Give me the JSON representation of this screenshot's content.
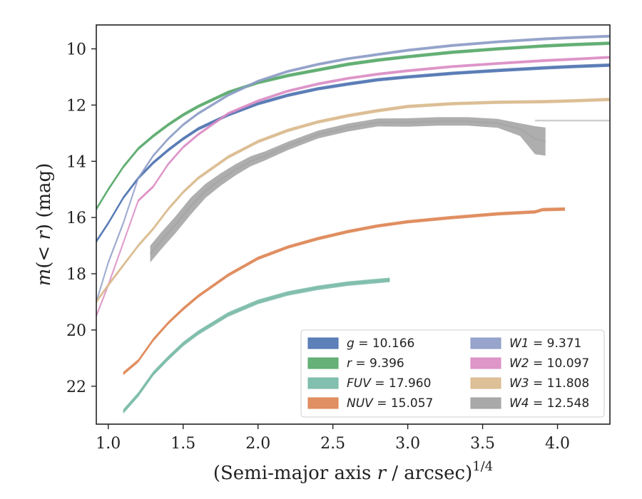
{
  "chart_data": {
    "type": "line",
    "xlabel": "(Semi-major axis r / arcsec)^{1/4}",
    "ylabel": "m(< r) (mag)",
    "xlim": [
      0.92,
      4.35
    ],
    "ylim": [
      23.35,
      9.15
    ],
    "y_inverted": true,
    "grid": false,
    "legend_placement": "lower-right",
    "x_ticks": [
      1.0,
      1.5,
      2.0,
      2.5,
      3.0,
      3.5,
      4.0
    ],
    "x_tick_labels": [
      "1.0",
      "1.5",
      "2.0",
      "2.5",
      "3.0",
      "3.5",
      "4.0"
    ],
    "y_ticks": [
      10,
      12,
      14,
      16,
      18,
      20,
      22
    ],
    "y_tick_labels": [
      "10",
      "12",
      "14",
      "16",
      "18",
      "20",
      "22"
    ],
    "series": [
      {
        "name": "g",
        "legend_label": "g = 10.166",
        "color": "#4c72b0",
        "x": [
          0.92,
          1.0,
          1.1,
          1.2,
          1.3,
          1.4,
          1.5,
          1.6,
          1.8,
          2.0,
          2.2,
          2.4,
          2.6,
          2.8,
          3.0,
          3.3,
          3.6,
          3.9,
          4.1,
          4.35
        ],
        "y": [
          16.85,
          16.2,
          15.3,
          14.6,
          14.05,
          13.6,
          13.2,
          12.85,
          12.35,
          11.95,
          11.65,
          11.42,
          11.25,
          11.1,
          11.0,
          10.87,
          10.77,
          10.68,
          10.63,
          10.58
        ],
        "band": 0.06
      },
      {
        "name": "r",
        "legend_label": "r = 9.396",
        "color": "#55a868",
        "x": [
          0.92,
          1.0,
          1.1,
          1.2,
          1.3,
          1.4,
          1.5,
          1.6,
          1.8,
          2.0,
          2.2,
          2.4,
          2.6,
          2.8,
          3.0,
          3.3,
          3.6,
          3.9,
          4.1,
          4.35
        ],
        "y": [
          15.7,
          15.0,
          14.2,
          13.55,
          13.1,
          12.7,
          12.35,
          12.05,
          11.55,
          11.2,
          10.95,
          10.75,
          10.55,
          10.4,
          10.28,
          10.12,
          10.0,
          9.9,
          9.85,
          9.8
        ],
        "band": 0.06
      },
      {
        "name": "FUV",
        "legend_label": "FUV = 17.960",
        "color": "#76b8a5",
        "x": [
          1.1,
          1.2,
          1.3,
          1.4,
          1.5,
          1.6,
          1.8,
          2.0,
          2.2,
          2.4,
          2.6,
          2.88
        ],
        "y": [
          22.9,
          22.3,
          21.55,
          21.0,
          20.5,
          20.1,
          19.45,
          19.0,
          18.7,
          18.5,
          18.35,
          18.22
        ],
        "band": 0.08
      },
      {
        "name": "NUV",
        "legend_label": "NUV = 15.057",
        "color": "#dd8452",
        "x": [
          1.1,
          1.2,
          1.3,
          1.4,
          1.5,
          1.6,
          1.8,
          2.0,
          2.2,
          2.4,
          2.6,
          2.8,
          3.0,
          3.3,
          3.6,
          3.85,
          3.9,
          4.05
        ],
        "y": [
          21.55,
          21.1,
          20.35,
          19.75,
          19.25,
          18.8,
          18.05,
          17.45,
          17.05,
          16.75,
          16.5,
          16.3,
          16.15,
          16.0,
          15.87,
          15.8,
          15.72,
          15.7
        ],
        "band": 0.06
      },
      {
        "name": "W1",
        "legend_label": "W1 = 9.371",
        "color": "#8c9bc6",
        "x": [
          0.92,
          1.0,
          1.1,
          1.2,
          1.3,
          1.4,
          1.5,
          1.6,
          1.8,
          2.0,
          2.2,
          2.4,
          2.6,
          2.8,
          3.0,
          3.3,
          3.6,
          3.9,
          4.1,
          4.35
        ],
        "y": [
          19.0,
          17.6,
          16.2,
          14.6,
          13.8,
          13.2,
          12.7,
          12.3,
          11.65,
          11.15,
          10.8,
          10.55,
          10.35,
          10.2,
          10.05,
          9.88,
          9.75,
          9.65,
          9.6,
          9.55
        ],
        "band": 0.05
      },
      {
        "name": "W2",
        "legend_label": "W2 = 10.097",
        "color": "#da8bc3",
        "x": [
          0.92,
          1.0,
          1.1,
          1.2,
          1.3,
          1.4,
          1.5,
          1.6,
          1.8,
          2.0,
          2.2,
          2.4,
          2.6,
          2.8,
          3.0,
          3.3,
          3.6,
          3.9,
          4.1,
          4.35
        ],
        "y": [
          19.5,
          18.4,
          16.9,
          15.4,
          14.9,
          14.1,
          13.5,
          13.05,
          12.3,
          11.85,
          11.5,
          11.25,
          11.05,
          10.9,
          10.78,
          10.63,
          10.52,
          10.42,
          10.37,
          10.3
        ],
        "band": 0.05
      },
      {
        "name": "W3",
        "legend_label": "W3 = 11.808",
        "color": "#d9b98c",
        "x": [
          0.92,
          1.0,
          1.1,
          1.2,
          1.3,
          1.4,
          1.5,
          1.6,
          1.8,
          2.0,
          2.2,
          2.4,
          2.6,
          2.8,
          3.0,
          3.3,
          3.6,
          3.9,
          4.1,
          4.35
        ],
        "y": [
          19.0,
          18.4,
          17.7,
          17.0,
          16.4,
          15.7,
          15.1,
          14.6,
          13.85,
          13.3,
          12.9,
          12.6,
          12.38,
          12.2,
          12.05,
          11.95,
          11.9,
          11.88,
          11.85,
          11.8
        ],
        "band": 0.06
      },
      {
        "name": "W4",
        "legend_label": "W4 = 12.548",
        "color": "#a0a0a0",
        "x": [
          1.28,
          1.35,
          1.45,
          1.55,
          1.65,
          1.75,
          1.85,
          1.95,
          2.05,
          2.2,
          2.4,
          2.6,
          2.8,
          3.0,
          3.2,
          3.4,
          3.6,
          3.75,
          3.85,
          3.92
        ],
        "y": [
          17.3,
          16.85,
          16.25,
          15.6,
          15.05,
          14.65,
          14.3,
          14.0,
          13.8,
          13.45,
          13.05,
          12.8,
          12.62,
          12.62,
          12.58,
          12.58,
          12.65,
          12.85,
          13.2,
          13.3
        ],
        "band_upper": [
          0.3,
          0.3,
          0.3,
          0.3,
          0.25,
          0.22,
          0.2,
          0.18,
          0.16,
          0.15,
          0.14,
          0.14,
          0.14,
          0.15,
          0.15,
          0.15,
          0.16,
          0.2,
          0.45,
          0.5
        ],
        "band_lower": [
          0.3,
          0.3,
          0.3,
          0.3,
          0.25,
          0.22,
          0.2,
          0.18,
          0.16,
          0.15,
          0.14,
          0.14,
          0.14,
          0.15,
          0.15,
          0.15,
          0.16,
          0.25,
          0.55,
          0.5
        ],
        "extension": {
          "x": [
            3.85,
            4.35
          ],
          "y": [
            12.55,
            12.55
          ]
        }
      }
    ],
    "legend": [
      {
        "name": "g",
        "text": "g = 10.166"
      },
      {
        "name": "r",
        "text": "r = 9.396"
      },
      {
        "name": "FUV",
        "text": "FUV = 17.960"
      },
      {
        "name": "NUV",
        "text": "NUV = 15.057"
      },
      {
        "name": "W1",
        "text": "W1 = 9.371"
      },
      {
        "name": "W2",
        "text": "W2 = 10.097"
      },
      {
        "name": "W3",
        "text": "W3 = 11.808"
      },
      {
        "name": "W4",
        "text": "W4 = 12.548"
      }
    ]
  }
}
